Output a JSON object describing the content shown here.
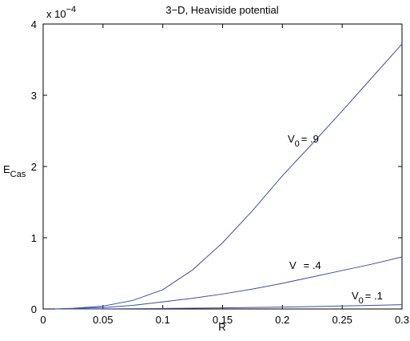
{
  "chart_data": {
    "type": "line",
    "title": "3−D,  Heaviside potential",
    "x_label": "R",
    "y_label": {
      "text": "E",
      "sub": "Cas"
    },
    "y_multiplier": {
      "text": "x 10",
      "sup": "−4"
    },
    "x": [
      0.01,
      0.025,
      0.05,
      0.075,
      0.1,
      0.125,
      0.15,
      0.175,
      0.2,
      0.225,
      0.25,
      0.275,
      0.3
    ],
    "series": [
      {
        "color": "#3d4ea3",
        "values": [
          0,
          0.01,
          0.04,
          0.12,
          0.27,
          0.55,
          0.93,
          1.38,
          1.87,
          2.32,
          2.78,
          3.25,
          3.72
        ]
      },
      {
        "color": "#3d4ea3",
        "values": [
          0,
          0.005,
          0.02,
          0.05,
          0.1,
          0.15,
          0.21,
          0.28,
          0.36,
          0.45,
          0.54,
          0.63,
          0.73
        ]
      },
      {
        "color": "#3d4ea3",
        "values": [
          0,
          0,
          0.002,
          0.004,
          0.007,
          0.011,
          0.016,
          0.021,
          0.027,
          0.034,
          0.042,
          0.05,
          0.06
        ]
      }
    ],
    "annotations": [
      {
        "text": "V",
        "sub": "0",
        "rest": "= .9"
      },
      {
        "text": "V",
        "rest": "= .4"
      },
      {
        "text": "V",
        "sub": "0",
        "rest": "= .1"
      }
    ],
    "xlim": [
      0,
      0.3
    ],
    "xticks": [
      0,
      0.05,
      0.1,
      0.15,
      0.2,
      0.25,
      0.3
    ],
    "ylim": [
      0,
      4
    ],
    "yticks": [
      0,
      1,
      2,
      3,
      4
    ]
  }
}
